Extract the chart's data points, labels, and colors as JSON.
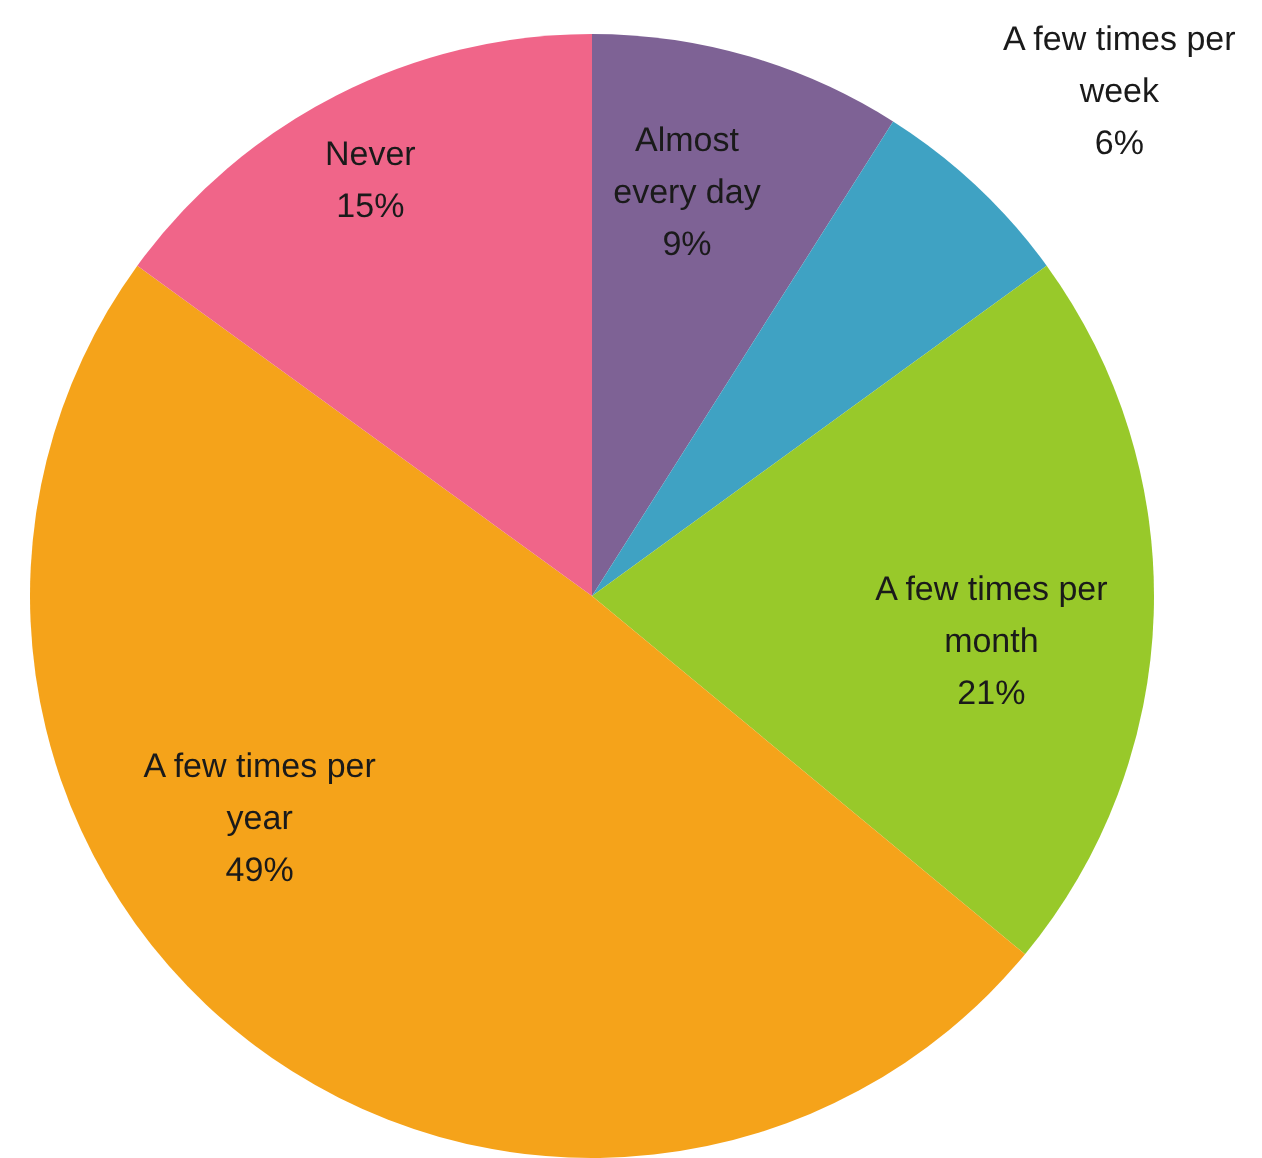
{
  "chart_data": {
    "type": "pie",
    "categories": [
      "Almost every day",
      "A few times per week",
      "A few times per month",
      "A few times per year",
      "Never"
    ],
    "values": [
      9,
      6,
      21,
      49,
      15
    ],
    "colors": [
      "#7e6295",
      "#3fa2c3",
      "#98c92a",
      "#f5a31a",
      "#f06589"
    ],
    "value_labels": [
      "9%",
      "6%",
      "21%",
      "49%",
      "15%"
    ]
  }
}
